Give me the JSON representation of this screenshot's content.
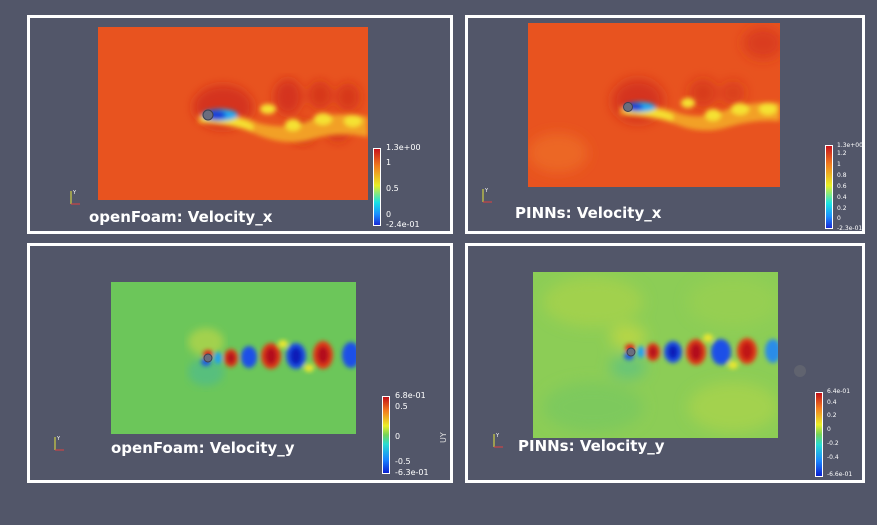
{
  "panels": [
    {
      "caption": "openFoam: Velocity_x",
      "colorbar": {
        "ticks": [
          "1.3e+00",
          "1",
          "0.5",
          "0",
          "-2.4e-01"
        ]
      }
    },
    {
      "caption": "PINNs: Velocity_x",
      "colorbar": {
        "ticks": [
          "1.3e+00",
          "1.2",
          "1",
          "0.8",
          "0.6",
          "0.4",
          "0.2",
          "0",
          "-2.3e-01"
        ]
      }
    },
    {
      "caption": "openFoam: Velocity_y",
      "colorbar": {
        "ticks": [
          "6.8e-01",
          "0.5",
          "0",
          "-0.5",
          "-6.3e-01"
        ],
        "label": "UY"
      }
    },
    {
      "caption": "PINNs: Velocity_y",
      "colorbar": {
        "ticks": [
          "6.4e-01",
          "0.4",
          "0.2",
          "0",
          "-0.2",
          "-0.4",
          "-6.6e-01"
        ]
      }
    }
  ],
  "colors": {
    "background": "#525669",
    "frame": "#ffffff",
    "ux_base": "#e8531f",
    "uy_base": "#6cc65a"
  }
}
